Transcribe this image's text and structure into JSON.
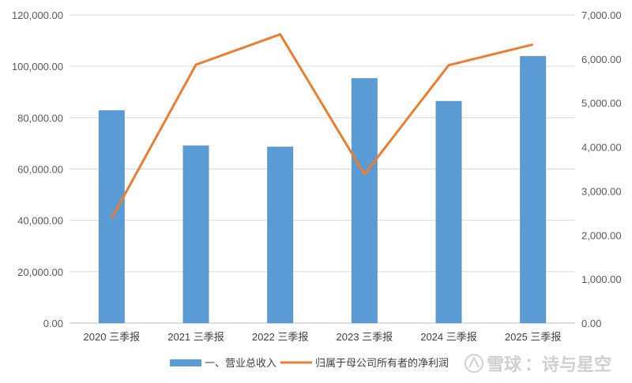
{
  "chart_data": {
    "type": "bar",
    "categories": [
      "2020 三季报",
      "2021 三季报",
      "2022 三季报",
      "2023 三季报",
      "2024 三季报",
      "2025 三季报"
    ],
    "series": [
      {
        "name": "一、营业总收入",
        "type": "bar",
        "axis": "left",
        "color": "#5b9bd5",
        "values": [
          82900,
          69200,
          68700,
          95400,
          86500,
          104000
        ]
      },
      {
        "name": "归属于母公司所有者的净利润",
        "type": "line",
        "axis": "right",
        "color": "#ed7d31",
        "values": [
          2380,
          5870,
          6560,
          3380,
          5860,
          6330
        ]
      }
    ],
    "y_left": {
      "ylim": [
        0,
        120000
      ],
      "ticks": [
        "0.00",
        "20,000.00",
        "40,000.00",
        "60,000.00",
        "80,000.00",
        "100,000.00",
        "120,000.00"
      ]
    },
    "y_right": {
      "ylim": [
        0,
        7000
      ],
      "ticks": [
        "0.00",
        "1,000.00",
        "2,000.00",
        "3,000.00",
        "4,000.00",
        "5,000.00",
        "6,000.00",
        "7,000.00"
      ]
    },
    "grid": true,
    "legend": "bottom",
    "title": "",
    "xlabel": "",
    "ylabel": ""
  },
  "watermark": {
    "brand": "雪球",
    "author": "：诗与星空"
  }
}
